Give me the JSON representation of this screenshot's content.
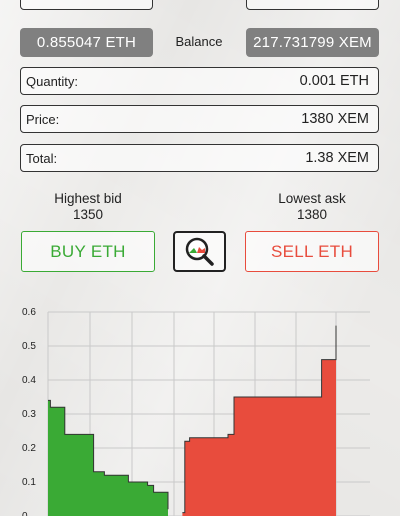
{
  "balance": {
    "eth_value": "0.855047 ETH",
    "label": "Balance",
    "xem_value": "217.731799 XEM"
  },
  "form": {
    "quantity": {
      "label": "Quantity:",
      "value": "0.001 ETH"
    },
    "price": {
      "label": "Price:",
      "value": "1380 XEM"
    },
    "total": {
      "label": "Total:",
      "value": "1.38 XEM"
    }
  },
  "market": {
    "highest_bid_label": "Highest bid",
    "highest_bid_value": "1350",
    "lowest_ask_label": "Lowest ask",
    "lowest_ask_value": "1380"
  },
  "actions": {
    "buy_label": "BUY ETH",
    "sell_label": "SELL ETH",
    "depth_icon": "magnifier-depth-icon"
  },
  "colors": {
    "buy": "#3aaa35",
    "sell": "#e84c3d",
    "pill_bg": "#808080"
  },
  "chart_data": {
    "type": "area",
    "title": "",
    "xlabel": "",
    "ylabel": "",
    "ylim": [
      0,
      0.6
    ],
    "y_ticks": [
      "0.6",
      "0.5",
      "0.4",
      "0.3",
      "0.2",
      "0.1",
      "0"
    ],
    "series": [
      {
        "side": "bid",
        "color": "#3aaa35",
        "x": [
          0,
          2,
          2,
          14,
          14,
          38,
          38,
          47,
          47,
          67,
          67,
          83,
          83,
          88,
          88,
          100,
          100
        ],
        "y": [
          0.34,
          0.34,
          0.32,
          0.32,
          0.24,
          0.24,
          0.13,
          0.13,
          0.12,
          0.12,
          0.1,
          0.1,
          0.09,
          0.09,
          0.07,
          0.07,
          0.02
        ]
      },
      {
        "side": "ask",
        "color": "#e84c3d",
        "x": [
          112,
          114,
          114,
          118,
          118,
          130,
          130,
          150,
          150,
          155,
          155,
          195,
          195,
          228,
          228,
          236,
          236,
          240,
          240
        ],
        "y": [
          0.01,
          0.01,
          0.22,
          0.22,
          0.23,
          0.23,
          0.23,
          0.23,
          0.24,
          0.24,
          0.35,
          0.35,
          0.35,
          0.35,
          0.46,
          0.46,
          0.46,
          0.46,
          0.56
        ]
      }
    ]
  }
}
